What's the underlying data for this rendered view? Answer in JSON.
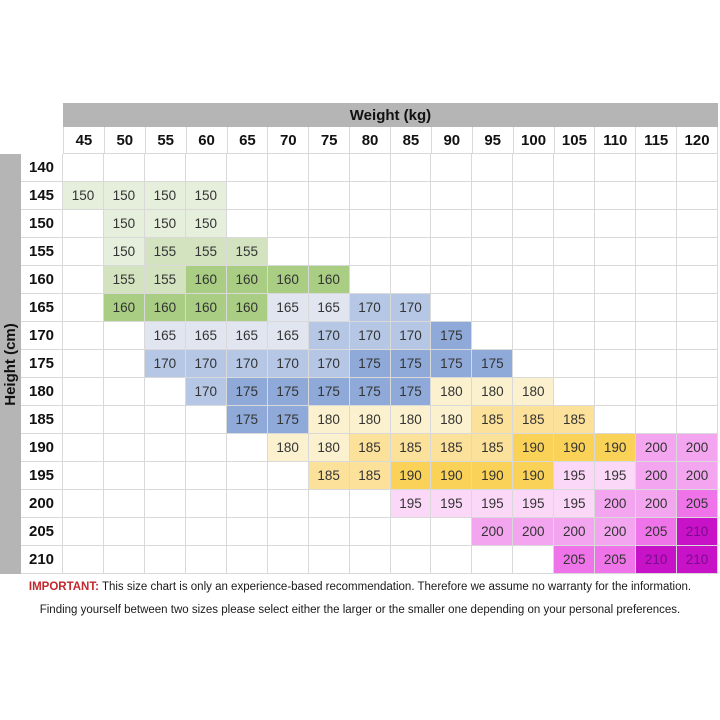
{
  "chart_data": {
    "type": "heatmap",
    "x_label": "Weight (kg)",
    "y_label": "Height (cm)",
    "x_ticks": [
      45,
      50,
      55,
      60,
      65,
      70,
      75,
      80,
      85,
      90,
      95,
      100,
      105,
      110,
      115,
      120
    ],
    "y_ticks": [
      140,
      145,
      150,
      155,
      160,
      165,
      170,
      175,
      180,
      185,
      190,
      195,
      200,
      205,
      210
    ],
    "grid": [
      [
        null,
        null,
        null,
        null,
        null,
        null,
        null,
        null,
        null,
        null,
        null,
        null,
        null,
        null,
        null,
        null
      ],
      [
        150,
        150,
        150,
        150,
        null,
        null,
        null,
        null,
        null,
        null,
        null,
        null,
        null,
        null,
        null,
        null
      ],
      [
        null,
        150,
        150,
        150,
        null,
        null,
        null,
        null,
        null,
        null,
        null,
        null,
        null,
        null,
        null,
        null
      ],
      [
        null,
        150,
        155,
        155,
        155,
        null,
        null,
        null,
        null,
        null,
        null,
        null,
        null,
        null,
        null,
        null
      ],
      [
        null,
        155,
        155,
        160,
        160,
        160,
        160,
        null,
        null,
        null,
        null,
        null,
        null,
        null,
        null,
        null
      ],
      [
        null,
        160,
        160,
        160,
        160,
        165,
        165,
        170,
        170,
        null,
        null,
        null,
        null,
        null,
        null,
        null
      ],
      [
        null,
        null,
        165,
        165,
        165,
        165,
        170,
        170,
        170,
        175,
        null,
        null,
        null,
        null,
        null,
        null
      ],
      [
        null,
        null,
        170,
        170,
        170,
        170,
        170,
        175,
        175,
        175,
        175,
        null,
        null,
        null,
        null,
        null
      ],
      [
        null,
        null,
        null,
        170,
        175,
        175,
        175,
        175,
        175,
        180,
        180,
        180,
        null,
        null,
        null,
        null
      ],
      [
        null,
        null,
        null,
        null,
        175,
        175,
        180,
        180,
        180,
        180,
        185,
        185,
        185,
        null,
        null,
        null
      ],
      [
        null,
        null,
        null,
        null,
        null,
        180,
        180,
        185,
        185,
        185,
        185,
        190,
        190,
        190,
        200,
        200
      ],
      [
        null,
        null,
        null,
        null,
        null,
        null,
        185,
        185,
        190,
        190,
        190,
        190,
        195,
        195,
        200,
        200
      ],
      [
        null,
        null,
        null,
        null,
        null,
        null,
        null,
        null,
        195,
        195,
        195,
        195,
        195,
        200,
        200,
        205
      ],
      [
        null,
        null,
        null,
        null,
        null,
        null,
        null,
        null,
        null,
        null,
        200,
        200,
        200,
        200,
        205,
        210
      ],
      [
        null,
        null,
        null,
        null,
        null,
        null,
        null,
        null,
        null,
        null,
        null,
        null,
        205,
        205,
        210,
        210
      ]
    ],
    "value_colors": {
      "150": "#e5efdc",
      "155": "#d3e3c0",
      "160": "#a9cd83",
      "165": "#e1e5f0",
      "170": "#b5c7e5",
      "175": "#8faad8",
      "180": "#fbf1ce",
      "185": "#fce19b",
      "190": "#fad257",
      "195": "#fbd7f8",
      "200": "#f3a5ef",
      "205": "#ef74e9",
      "210": "#c712c7"
    },
    "value_text_colors": {
      "210": "#7b0b8e"
    },
    "legend_position": "none",
    "grid_lines": true
  },
  "colors": {
    "header_bg": "#b5b5b5",
    "border": "#d9d9d9",
    "important_red": "#c1272d"
  },
  "footer": {
    "important_label": "IMPORTANT:",
    "line1": "This size chart is only an experience-based recommendation. Therefore we assume no warranty for the information.",
    "line2": "Finding yourself between two sizes please select either the larger or the smaller one depending on your personal preferences."
  }
}
